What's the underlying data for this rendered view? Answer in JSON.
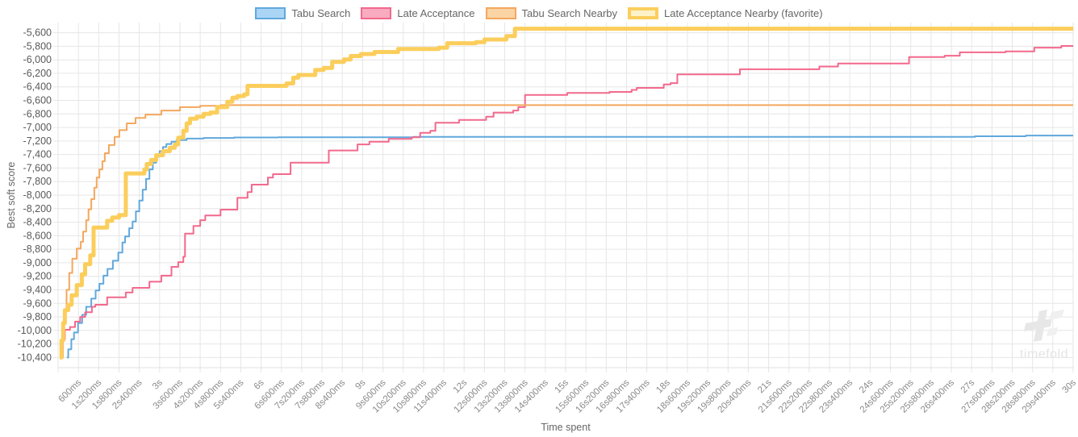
{
  "watermark": {
    "text": "timefold"
  },
  "palette": {
    "grid": "#e6e6e6",
    "axis_border": "#e0e0e0",
    "y_tick_text": "#595959",
    "x_tick_text": "#8a8a8a",
    "title_text": "#666666",
    "watermark_gray": "#e7e7e7",
    "watermark_gray_light": "#f0f0f0"
  },
  "chart_data": {
    "type": "line",
    "stepped": true,
    "title": "",
    "xlabel": "Time spent",
    "ylabel": "Best soft score",
    "legend_position": "top",
    "grid": true,
    "xlim_seconds": [
      0,
      30
    ],
    "ylim": [
      -10550,
      -5450
    ],
    "y_tick_step": 200,
    "y_tick_labels": [
      "-5,600",
      "-5,800",
      "-6,000",
      "-6,200",
      "-6,400",
      "-6,600",
      "-6,800",
      "-7,000",
      "-7,200",
      "-7,400",
      "-7,600",
      "-7,800",
      "-8,000",
      "-8,200",
      "-8,400",
      "-8,600",
      "-8,800",
      "-9,000",
      "-9,200",
      "-9,400",
      "-9,600",
      "-9,800",
      "-10,000",
      "-10,200",
      "-10,400"
    ],
    "x_tick_step_seconds": 0.6,
    "x_tick_labels": [
      "600ms",
      "1s200ms",
      "1s800ms",
      "2s400ms",
      "3s",
      "3s600ms",
      "4s200ms",
      "4s800ms",
      "5s400ms",
      "6s",
      "6s600ms",
      "7s200ms",
      "7s800ms",
      "8s400ms",
      "9s",
      "9s600ms",
      "10s200ms",
      "10s800ms",
      "11s400ms",
      "12s",
      "12s600ms",
      "13s200ms",
      "13s800ms",
      "14s400ms",
      "15s",
      "15s600ms",
      "16s200ms",
      "16s800ms",
      "17s400ms",
      "18s",
      "18s600ms",
      "19s200ms",
      "19s800ms",
      "20s400ms",
      "21s",
      "21s600ms",
      "22s200ms",
      "22s800ms",
      "23s400ms",
      "24s",
      "24s600ms",
      "25s200ms",
      "25s800ms",
      "26s400ms",
      "27s",
      "27s600ms",
      "28s200ms",
      "28s800ms",
      "29s400ms",
      "30s"
    ],
    "series": [
      {
        "name": "Tabu Search",
        "color": "#60a8dd",
        "swatch_fill": "#abd5f5",
        "line_width": 2,
        "points": [
          [
            0.26,
            -10400
          ],
          [
            0.3,
            -10280
          ],
          [
            0.39,
            -10130
          ],
          [
            0.47,
            -10030
          ],
          [
            0.59,
            -9890
          ],
          [
            0.71,
            -9770
          ],
          [
            0.83,
            -9650
          ],
          [
            0.98,
            -9530
          ],
          [
            1.11,
            -9410
          ],
          [
            1.22,
            -9310
          ],
          [
            1.34,
            -9190
          ],
          [
            1.46,
            -9090
          ],
          [
            1.62,
            -8970
          ],
          [
            1.78,
            -8850
          ],
          [
            1.9,
            -8700
          ],
          [
            1.98,
            -8610
          ],
          [
            2.1,
            -8490
          ],
          [
            2.2,
            -8390
          ],
          [
            2.3,
            -8240
          ],
          [
            2.4,
            -8080
          ],
          [
            2.5,
            -7920
          ],
          [
            2.6,
            -7760
          ],
          [
            2.7,
            -7620
          ],
          [
            2.8,
            -7520
          ],
          [
            2.9,
            -7430
          ],
          [
            3.0,
            -7350
          ],
          [
            3.1,
            -7290
          ],
          [
            3.2,
            -7245
          ],
          [
            3.35,
            -7210
          ],
          [
            3.5,
            -7185
          ],
          [
            3.8,
            -7165
          ],
          [
            4.3,
            -7155
          ],
          [
            5.2,
            -7148
          ],
          [
            6.5,
            -7145
          ],
          [
            10.5,
            -7140
          ],
          [
            27.1,
            -7130
          ],
          [
            28.6,
            -7120
          ]
        ]
      },
      {
        "name": "Late Acceptance",
        "color": "#f2698c",
        "swatch_fill": "#f9abc0",
        "line_width": 2,
        "points": [
          [
            0.1,
            -10400
          ],
          [
            0.14,
            -10130
          ],
          [
            0.2,
            -9990
          ],
          [
            0.35,
            -9950
          ],
          [
            0.5,
            -9870
          ],
          [
            0.65,
            -9800
          ],
          [
            0.8,
            -9730
          ],
          [
            1.0,
            -9650
          ],
          [
            1.1,
            -9620
          ],
          [
            1.45,
            -9510
          ],
          [
            2.0,
            -9440
          ],
          [
            2.2,
            -9370
          ],
          [
            2.7,
            -9280
          ],
          [
            3.05,
            -9190
          ],
          [
            3.35,
            -9060
          ],
          [
            3.55,
            -8990
          ],
          [
            3.7,
            -8910
          ],
          [
            3.75,
            -8570
          ],
          [
            4.0,
            -8455
          ],
          [
            4.2,
            -8370
          ],
          [
            4.35,
            -8300
          ],
          [
            4.8,
            -8215
          ],
          [
            5.3,
            -8040
          ],
          [
            5.6,
            -7955
          ],
          [
            5.72,
            -7845
          ],
          [
            6.2,
            -7740
          ],
          [
            6.35,
            -7690
          ],
          [
            6.87,
            -7520
          ],
          [
            8.0,
            -7340
          ],
          [
            8.85,
            -7250
          ],
          [
            9.2,
            -7210
          ],
          [
            9.77,
            -7170
          ],
          [
            10.45,
            -7145
          ],
          [
            10.7,
            -7080
          ],
          [
            11.0,
            -7050
          ],
          [
            11.15,
            -6930
          ],
          [
            11.85,
            -6890
          ],
          [
            12.65,
            -6840
          ],
          [
            12.87,
            -6780
          ],
          [
            13.45,
            -6750
          ],
          [
            13.6,
            -6700
          ],
          [
            13.8,
            -6520
          ],
          [
            15.05,
            -6490
          ],
          [
            16.3,
            -6475
          ],
          [
            16.95,
            -6445
          ],
          [
            17.1,
            -6415
          ],
          [
            17.9,
            -6365
          ],
          [
            18.1,
            -6345
          ],
          [
            18.3,
            -6215
          ],
          [
            20.15,
            -6140
          ],
          [
            22.5,
            -6100
          ],
          [
            23.05,
            -6055
          ],
          [
            25.15,
            -5960
          ],
          [
            26.2,
            -5940
          ],
          [
            26.65,
            -5890
          ],
          [
            28.0,
            -5875
          ],
          [
            28.85,
            -5820
          ],
          [
            29.65,
            -5795
          ]
        ]
      },
      {
        "name": "Tabu Search Nearby",
        "color": "#f4a75d",
        "swatch_fill": "#fbd4a5",
        "line_width": 2,
        "points": [
          [
            0.07,
            -10400
          ],
          [
            0.12,
            -10000
          ],
          [
            0.18,
            -9700
          ],
          [
            0.25,
            -9400
          ],
          [
            0.33,
            -9150
          ],
          [
            0.42,
            -8940
          ],
          [
            0.55,
            -8790
          ],
          [
            0.67,
            -8690
          ],
          [
            0.74,
            -8540
          ],
          [
            0.83,
            -8370
          ],
          [
            0.9,
            -8210
          ],
          [
            0.98,
            -8060
          ],
          [
            1.07,
            -7890
          ],
          [
            1.14,
            -7740
          ],
          [
            1.22,
            -7620
          ],
          [
            1.31,
            -7500
          ],
          [
            1.38,
            -7380
          ],
          [
            1.5,
            -7260
          ],
          [
            1.67,
            -7140
          ],
          [
            1.81,
            -7040
          ],
          [
            2.03,
            -6940
          ],
          [
            2.29,
            -6860
          ],
          [
            2.58,
            -6810
          ],
          [
            3.05,
            -6750
          ],
          [
            3.6,
            -6700
          ],
          [
            4.2,
            -6680
          ],
          [
            4.8,
            -6670
          ]
        ]
      },
      {
        "name": "Late Acceptance Nearby (favorite)",
        "color": "#fbce5c",
        "swatch_fill": "#fdf1c8",
        "line_width": 5,
        "favorite": true,
        "points": [
          [
            0.05,
            -10400
          ],
          [
            0.1,
            -10150
          ],
          [
            0.15,
            -9890
          ],
          [
            0.2,
            -9700
          ],
          [
            0.3,
            -9620
          ],
          [
            0.4,
            -9480
          ],
          [
            0.55,
            -9330
          ],
          [
            0.7,
            -9170
          ],
          [
            0.8,
            -9020
          ],
          [
            0.95,
            -8890
          ],
          [
            1.05,
            -8480
          ],
          [
            1.45,
            -8380
          ],
          [
            1.6,
            -8330
          ],
          [
            1.8,
            -8295
          ],
          [
            2.0,
            -7680
          ],
          [
            2.55,
            -7620
          ],
          [
            2.62,
            -7540
          ],
          [
            2.75,
            -7480
          ],
          [
            2.9,
            -7410
          ],
          [
            3.1,
            -7350
          ],
          [
            3.3,
            -7300
          ],
          [
            3.45,
            -7250
          ],
          [
            3.55,
            -7150
          ],
          [
            3.7,
            -7050
          ],
          [
            3.8,
            -6940
          ],
          [
            3.9,
            -6870
          ],
          [
            4.1,
            -6840
          ],
          [
            4.3,
            -6800
          ],
          [
            4.5,
            -6780
          ],
          [
            4.7,
            -6700
          ],
          [
            5.0,
            -6620
          ],
          [
            5.15,
            -6560
          ],
          [
            5.3,
            -6535
          ],
          [
            5.5,
            -6510
          ],
          [
            5.6,
            -6385
          ],
          [
            6.75,
            -6350
          ],
          [
            6.95,
            -6265
          ],
          [
            7.1,
            -6225
          ],
          [
            7.6,
            -6150
          ],
          [
            7.85,
            -6120
          ],
          [
            8.1,
            -6030
          ],
          [
            8.45,
            -5995
          ],
          [
            8.65,
            -5945
          ],
          [
            8.95,
            -5915
          ],
          [
            9.35,
            -5885
          ],
          [
            10.05,
            -5840
          ],
          [
            11.25,
            -5820
          ],
          [
            11.5,
            -5755
          ],
          [
            12.35,
            -5740
          ],
          [
            12.6,
            -5700
          ],
          [
            13.25,
            -5650
          ],
          [
            13.5,
            -5540
          ]
        ]
      }
    ]
  }
}
